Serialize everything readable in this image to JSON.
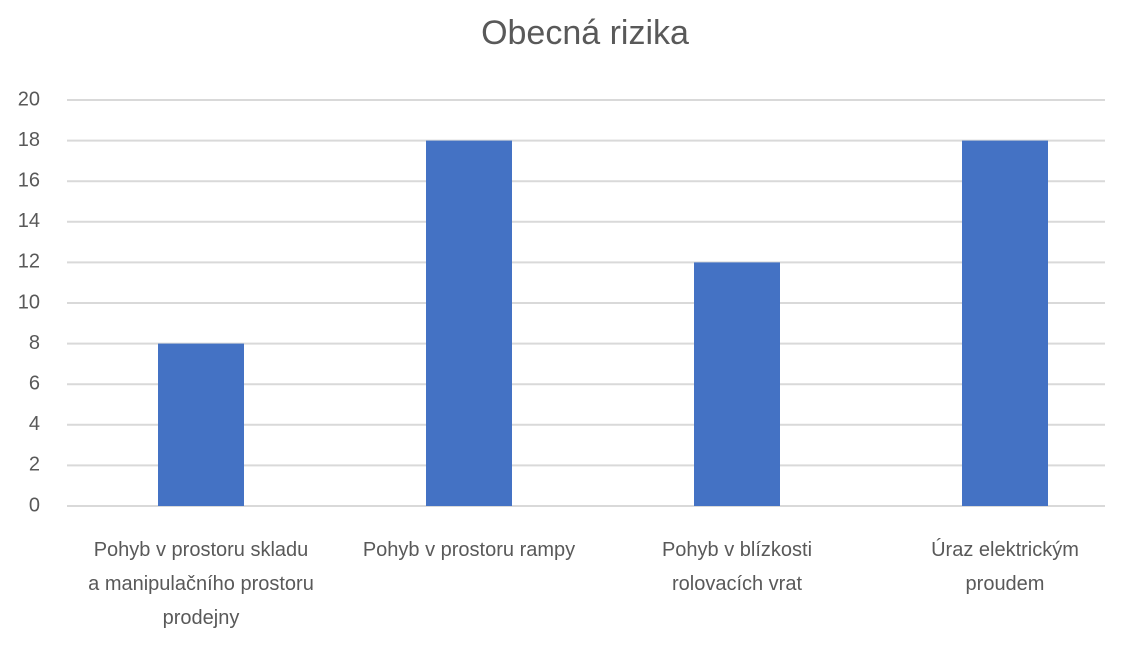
{
  "chart_data": {
    "type": "bar",
    "title": "Obecná rizika",
    "categories": [
      "Pohyb v prostoru skladu a manipulačního prostoru prodejny",
      "Pohyb v prostoru rampy",
      "Pohyb v blízkosti rolovacích vrat",
      "Úraz elektrickým proudem"
    ],
    "values": [
      8,
      18,
      12,
      18
    ],
    "color": "#4472c4",
    "ylim": [
      0,
      20
    ],
    "yticks": [
      0,
      2,
      4,
      6,
      8,
      10,
      12,
      14,
      16,
      18,
      20
    ],
    "grid": true
  }
}
